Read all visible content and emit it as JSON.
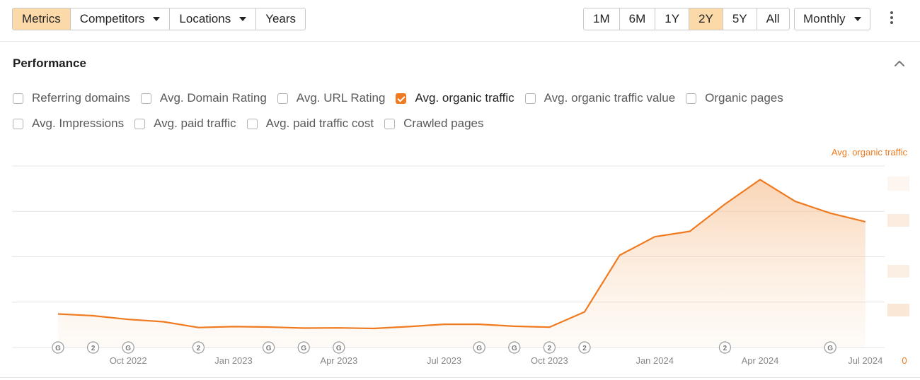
{
  "toolbar": {
    "tabs": [
      {
        "label": "Metrics",
        "active": true,
        "dropdown": false
      },
      {
        "label": "Competitors",
        "active": false,
        "dropdown": true
      },
      {
        "label": "Locations",
        "active": false,
        "dropdown": true
      },
      {
        "label": "Years",
        "active": false,
        "dropdown": false
      }
    ],
    "ranges": [
      {
        "label": "1M",
        "active": false
      },
      {
        "label": "6M",
        "active": false
      },
      {
        "label": "1Y",
        "active": false
      },
      {
        "label": "2Y",
        "active": true
      },
      {
        "label": "5Y",
        "active": false
      },
      {
        "label": "All",
        "active": false
      }
    ],
    "interval": "Monthly",
    "menu_icon": "more-vertical-icon"
  },
  "section": {
    "title": "Performance",
    "collapse_icon": "chevron-up-icon"
  },
  "metrics": {
    "row1": [
      {
        "label": "Referring domains",
        "checked": false
      },
      {
        "label": "Avg. Domain Rating",
        "checked": false
      },
      {
        "label": "Avg. URL Rating",
        "checked": false
      },
      {
        "label": "Avg. organic traffic",
        "checked": true
      },
      {
        "label": "Avg. organic traffic value",
        "checked": false
      },
      {
        "label": "Organic pages",
        "checked": false
      }
    ],
    "row2": [
      {
        "label": "Avg. Impressions",
        "checked": false
      },
      {
        "label": "Avg. paid traffic",
        "checked": false
      },
      {
        "label": "Avg. paid traffic cost",
        "checked": false
      },
      {
        "label": "Crawled pages",
        "checked": false
      }
    ]
  },
  "colors": {
    "accent": "#ef7a1f",
    "active_bg": "#fbd9a8",
    "grid": "#e4e4e4"
  },
  "chart_data": {
    "type": "area",
    "series": [
      {
        "name": "Avg. organic traffic",
        "values": [
          0.185,
          0.175,
          0.155,
          0.142,
          0.11,
          0.115,
          0.113,
          0.107,
          0.108,
          0.105,
          0.115,
          0.128,
          0.128,
          0.117,
          0.112,
          0.196,
          0.508,
          0.61,
          0.64,
          0.79,
          0.925,
          0.805,
          0.74,
          0.693
        ]
      }
    ],
    "axis_label": "Avg. organic traffic",
    "y_tick_label": "0",
    "ylim": [
      0,
      1
    ],
    "gridlines": 4,
    "x_ticks": [
      {
        "label": "Oct 2022",
        "index": 2
      },
      {
        "label": "Jan 2023",
        "index": 5
      },
      {
        "label": "Apr 2023",
        "index": 8
      },
      {
        "label": "Jul 2023",
        "index": 11
      },
      {
        "label": "Oct 2023",
        "index": 14
      },
      {
        "label": "Jan 2024",
        "index": 17
      },
      {
        "label": "Apr 2024",
        "index": 20
      },
      {
        "label": "Jul 2024",
        "index": 23
      }
    ],
    "annotations": [
      {
        "label": "G",
        "index": 0
      },
      {
        "label": "2",
        "index": 1
      },
      {
        "label": "G",
        "index": 2
      },
      {
        "label": "2",
        "index": 4
      },
      {
        "label": "G",
        "index": 6
      },
      {
        "label": "G",
        "index": 7
      },
      {
        "label": "G",
        "index": 8
      },
      {
        "label": "G",
        "index": 12
      },
      {
        "label": "G",
        "index": 13
      },
      {
        "label": "2",
        "index": 14
      },
      {
        "label": "2",
        "index": 15
      },
      {
        "label": "2",
        "index": 19
      },
      {
        "label": "G",
        "index": 22
      }
    ]
  }
}
